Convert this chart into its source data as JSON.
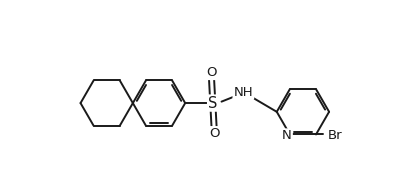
{
  "bg_color": "#ffffff",
  "line_color": "#1a1a1a",
  "line_width": 1.4,
  "font_size": 9.5,
  "xlim": [
    -1.6,
    3.8
  ],
  "ylim": [
    -1.05,
    1.1
  ]
}
